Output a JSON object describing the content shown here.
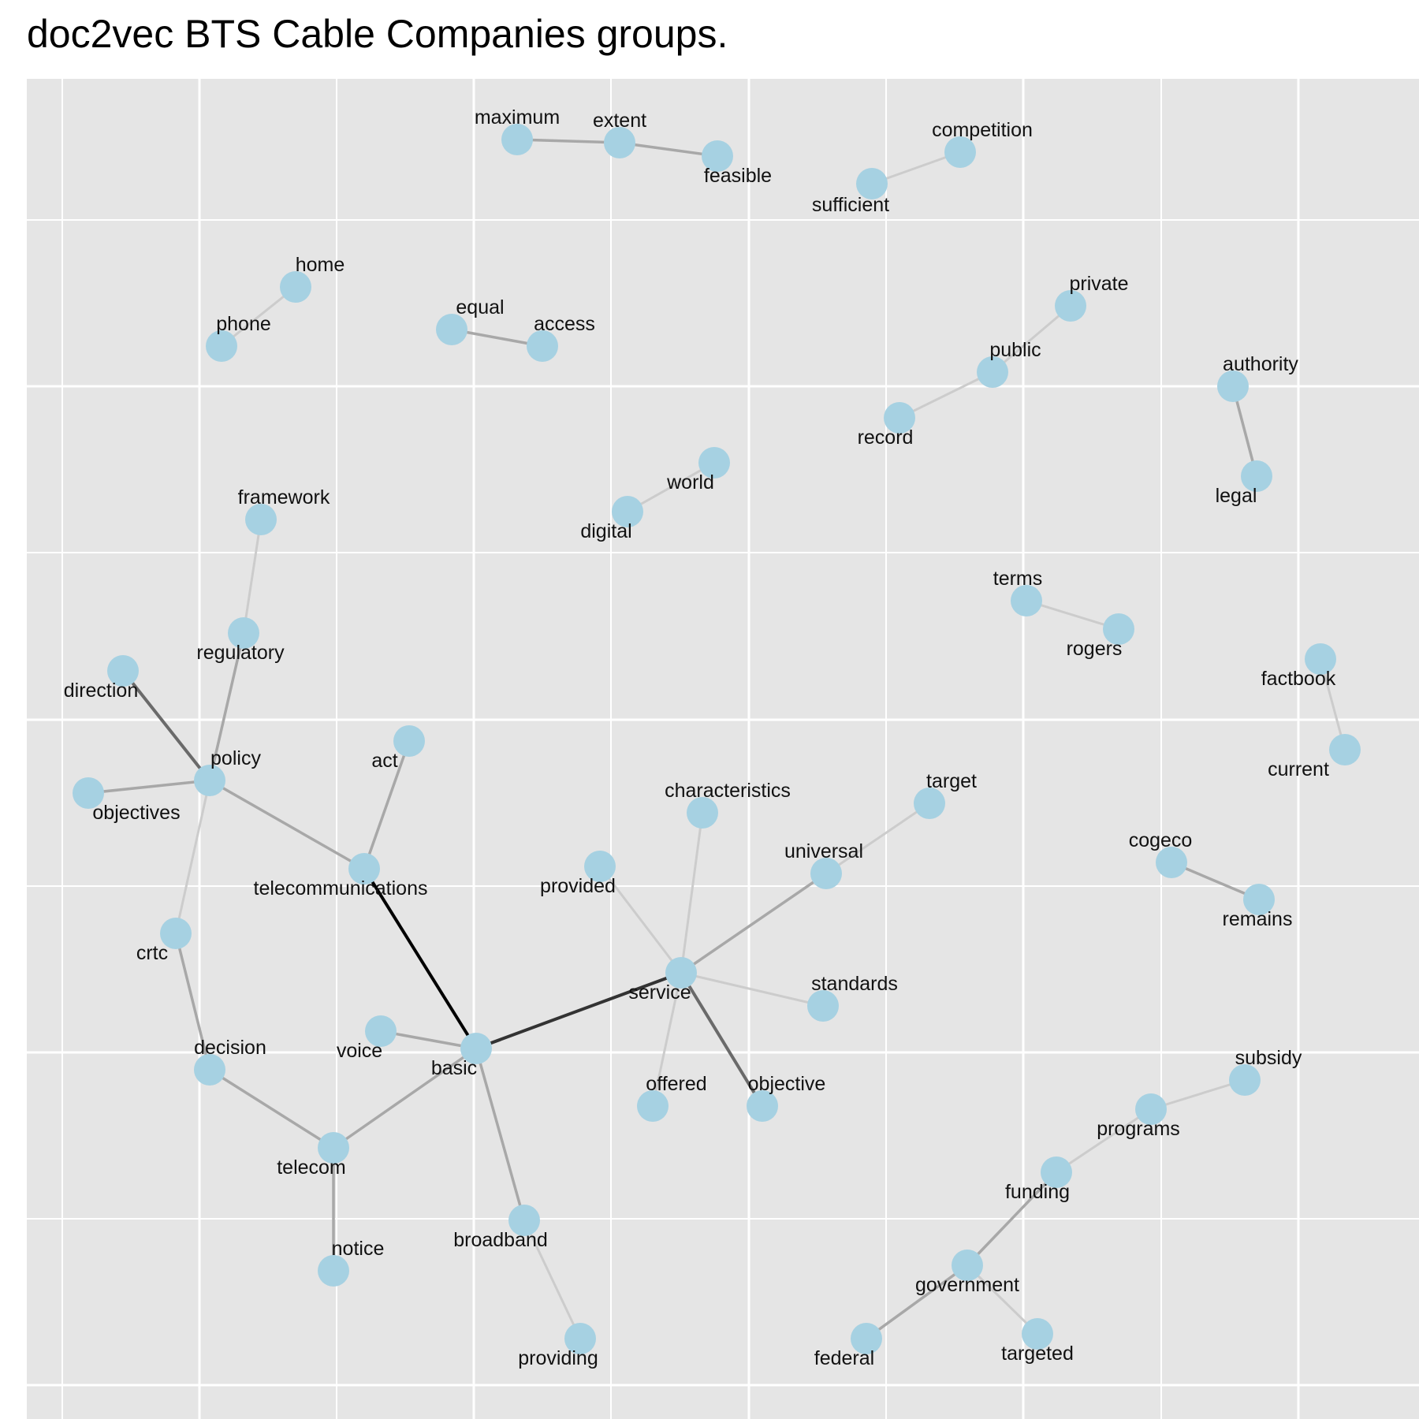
{
  "title": "doc2vec BTS Cable Companies groups.",
  "colors": {
    "panel": "#e5e5e5",
    "grid": "#ffffff",
    "node": "#a6d1e2",
    "edge_weak": "#cccccc",
    "edge_mid": "#a8a8a8",
    "edge_strong": "#6a6a6a",
    "edge_strongest": "#000000"
  },
  "nodes": [
    {
      "id": "maximum",
      "label": "maximum"
    },
    {
      "id": "extent",
      "label": "extent"
    },
    {
      "id": "feasible",
      "label": "feasible"
    },
    {
      "id": "competition",
      "label": "competition"
    },
    {
      "id": "sufficient",
      "label": "sufficient"
    },
    {
      "id": "home",
      "label": "home"
    },
    {
      "id": "phone",
      "label": "phone"
    },
    {
      "id": "equal",
      "label": "equal"
    },
    {
      "id": "access",
      "label": "access"
    },
    {
      "id": "private",
      "label": "private"
    },
    {
      "id": "public",
      "label": "public"
    },
    {
      "id": "record",
      "label": "record"
    },
    {
      "id": "authority",
      "label": "authority"
    },
    {
      "id": "legal",
      "label": "legal"
    },
    {
      "id": "world",
      "label": "world"
    },
    {
      "id": "digital",
      "label": "digital"
    },
    {
      "id": "framework",
      "label": "framework"
    },
    {
      "id": "regulatory",
      "label": "regulatory"
    },
    {
      "id": "terms",
      "label": "terms"
    },
    {
      "id": "rogers",
      "label": "rogers"
    },
    {
      "id": "factbook",
      "label": "factbook"
    },
    {
      "id": "current",
      "label": "current"
    },
    {
      "id": "direction",
      "label": "direction"
    },
    {
      "id": "policy",
      "label": "policy"
    },
    {
      "id": "objectives",
      "label": "objectives"
    },
    {
      "id": "act",
      "label": "act"
    },
    {
      "id": "characteristics",
      "label": "characteristics"
    },
    {
      "id": "target",
      "label": "target"
    },
    {
      "id": "universal",
      "label": "universal"
    },
    {
      "id": "cogeco",
      "label": "cogeco"
    },
    {
      "id": "remains",
      "label": "remains"
    },
    {
      "id": "telecommunications",
      "label": "telecommunications"
    },
    {
      "id": "provided",
      "label": "provided"
    },
    {
      "id": "crtc",
      "label": "crtc"
    },
    {
      "id": "service",
      "label": "service"
    },
    {
      "id": "standards",
      "label": "standards"
    },
    {
      "id": "voice",
      "label": "voice"
    },
    {
      "id": "basic",
      "label": "basic"
    },
    {
      "id": "decision",
      "label": "decision"
    },
    {
      "id": "subsidy",
      "label": "subsidy"
    },
    {
      "id": "offered",
      "label": "offered"
    },
    {
      "id": "objective",
      "label": "objective"
    },
    {
      "id": "programs",
      "label": "programs"
    },
    {
      "id": "telecom",
      "label": "telecom"
    },
    {
      "id": "funding",
      "label": "funding"
    },
    {
      "id": "broadband",
      "label": "broadband"
    },
    {
      "id": "notice",
      "label": "notice"
    },
    {
      "id": "government",
      "label": "government"
    },
    {
      "id": "providing",
      "label": "providing"
    },
    {
      "id": "federal",
      "label": "federal"
    },
    {
      "id": "targeted",
      "label": "targeted"
    }
  ],
  "edges": [
    {
      "source": "maximum",
      "target": "extent",
      "strength": "mid"
    },
    {
      "source": "extent",
      "target": "feasible",
      "strength": "mid"
    },
    {
      "source": "sufficient",
      "target": "competition",
      "strength": "weak"
    },
    {
      "source": "phone",
      "target": "home",
      "strength": "weak"
    },
    {
      "source": "equal",
      "target": "access",
      "strength": "mid"
    },
    {
      "source": "record",
      "target": "public",
      "strength": "weak"
    },
    {
      "source": "public",
      "target": "private",
      "strength": "weak"
    },
    {
      "source": "authority",
      "target": "legal",
      "strength": "mid"
    },
    {
      "source": "digital",
      "target": "world",
      "strength": "weak"
    },
    {
      "source": "framework",
      "target": "regulatory",
      "strength": "weak"
    },
    {
      "source": "regulatory",
      "target": "policy",
      "strength": "mid"
    },
    {
      "source": "terms",
      "target": "rogers",
      "strength": "weak"
    },
    {
      "source": "factbook",
      "target": "current",
      "strength": "weak"
    },
    {
      "source": "direction",
      "target": "policy",
      "strength": "strong"
    },
    {
      "source": "objectives",
      "target": "policy",
      "strength": "mid"
    },
    {
      "source": "policy",
      "target": "telecommunications",
      "strength": "mid"
    },
    {
      "source": "policy",
      "target": "crtc",
      "strength": "weak"
    },
    {
      "source": "act",
      "target": "telecommunications",
      "strength": "mid"
    },
    {
      "source": "telecommunications",
      "target": "basic",
      "strength": "strongest"
    },
    {
      "source": "cogeco",
      "target": "remains",
      "strength": "mid"
    },
    {
      "source": "universal",
      "target": "target",
      "strength": "weak"
    },
    {
      "source": "service",
      "target": "universal",
      "strength": "mid"
    },
    {
      "source": "service",
      "target": "characteristics",
      "strength": "weak"
    },
    {
      "source": "service",
      "target": "provided",
      "strength": "weak"
    },
    {
      "source": "service",
      "target": "standards",
      "strength": "weak"
    },
    {
      "source": "service",
      "target": "offered",
      "strength": "weak"
    },
    {
      "source": "service",
      "target": "objective",
      "strength": "strong"
    },
    {
      "source": "basic",
      "target": "service",
      "strength": "stronger"
    },
    {
      "source": "voice",
      "target": "basic",
      "strength": "mid"
    },
    {
      "source": "basic",
      "target": "telecom",
      "strength": "mid"
    },
    {
      "source": "basic",
      "target": "broadband",
      "strength": "mid"
    },
    {
      "source": "crtc",
      "target": "decision",
      "strength": "mid"
    },
    {
      "source": "decision",
      "target": "telecom",
      "strength": "mid"
    },
    {
      "source": "telecom",
      "target": "notice",
      "strength": "mid"
    },
    {
      "source": "broadband",
      "target": "providing",
      "strength": "weak"
    },
    {
      "source": "programs",
      "target": "subsidy",
      "strength": "weak"
    },
    {
      "source": "funding",
      "target": "programs",
      "strength": "weak"
    },
    {
      "source": "government",
      "target": "funding",
      "strength": "mid"
    },
    {
      "source": "government",
      "target": "federal",
      "strength": "mid"
    },
    {
      "source": "government",
      "target": "targeted",
      "strength": "weak"
    }
  ]
}
